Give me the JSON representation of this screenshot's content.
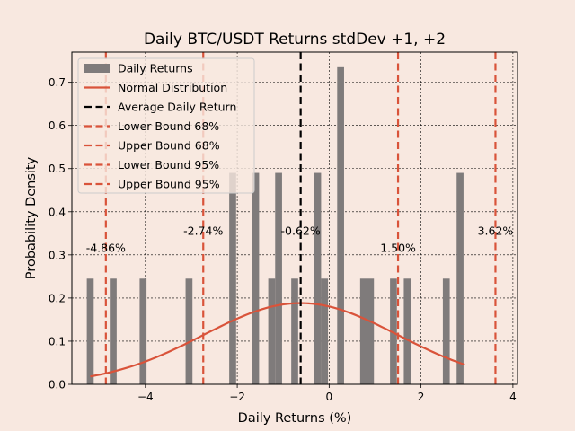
{
  "chart_data": {
    "type": "bar",
    "title": "Daily BTC/USDT Returns stdDev +1, +2",
    "xlabel": "Daily Returns (%)",
    "ylabel": "Probability Density",
    "xlim": [
      -5.6,
      4.1
    ],
    "ylim": [
      0,
      0.77
    ],
    "xticks": [
      -4,
      -2,
      0,
      2,
      4
    ],
    "xtick_labels": [
      "−4",
      "−2",
      "0",
      "2",
      "4"
    ],
    "yticks": [
      0.0,
      0.1,
      0.2,
      0.3,
      0.4,
      0.5,
      0.6,
      0.7
    ],
    "ytick_labels": [
      "0.0",
      "0.1",
      "0.2",
      "0.3",
      "0.4",
      "0.5",
      "0.6",
      "0.7"
    ],
    "grid": true,
    "legend_position": "top-left",
    "legend": [
      {
        "label": "Daily Returns",
        "kind": "patch",
        "color": "#7f7b7b"
      },
      {
        "label": "Normal Distribution",
        "kind": "line",
        "color": "#d9533a"
      },
      {
        "label": "Average Daily Return",
        "kind": "dashed",
        "color": "#000000"
      },
      {
        "label": "Lower Bound 68%",
        "kind": "dashed",
        "color": "#d9533a"
      },
      {
        "label": "Upper Bound 68%",
        "kind": "dashed",
        "color": "#d9533a"
      },
      {
        "label": "Lower Bound 95%",
        "kind": "dashed",
        "color": "#d9533a"
      },
      {
        "label": "Upper Bound 95%",
        "kind": "dashed",
        "color": "#d9533a"
      }
    ],
    "bar_color": "#7f7b7b",
    "bar_width": 0.15,
    "bars": [
      {
        "x": -5.2,
        "y": 0.245
      },
      {
        "x": -4.7,
        "y": 0.245
      },
      {
        "x": -4.05,
        "y": 0.245
      },
      {
        "x": -3.05,
        "y": 0.245
      },
      {
        "x": -2.1,
        "y": 0.49
      },
      {
        "x": -1.6,
        "y": 0.49
      },
      {
        "x": -1.25,
        "y": 0.245
      },
      {
        "x": -1.1,
        "y": 0.49
      },
      {
        "x": -0.75,
        "y": 0.245
      },
      {
        "x": -0.25,
        "y": 0.49
      },
      {
        "x": -0.1,
        "y": 0.245
      },
      {
        "x": 0.25,
        "y": 0.735
      },
      {
        "x": 0.75,
        "y": 0.245
      },
      {
        "x": 0.9,
        "y": 0.245
      },
      {
        "x": 1.4,
        "y": 0.245
      },
      {
        "x": 1.7,
        "y": 0.245
      },
      {
        "x": 2.55,
        "y": 0.245
      },
      {
        "x": 2.85,
        "y": 0.49
      }
    ],
    "normal_curve": {
      "color": "#d9533a",
      "mean": -0.62,
      "std": 2.12,
      "x_range": [
        -5.2,
        2.95
      ]
    },
    "vlines": [
      {
        "x": -0.62,
        "color": "#000000",
        "label": "-0.62%"
      },
      {
        "x": -4.86,
        "color": "#d9533a",
        "label": "-4.86%"
      },
      {
        "x": -2.74,
        "color": "#d9533a",
        "label": "-2.74%"
      },
      {
        "x": 1.5,
        "color": "#d9533a",
        "label": "1.50%"
      },
      {
        "x": 3.62,
        "color": "#d9533a",
        "label": "3.62%"
      }
    ],
    "vline_label_y": [
      0.355,
      0.315,
      0.355,
      0.315,
      0.355
    ]
  }
}
